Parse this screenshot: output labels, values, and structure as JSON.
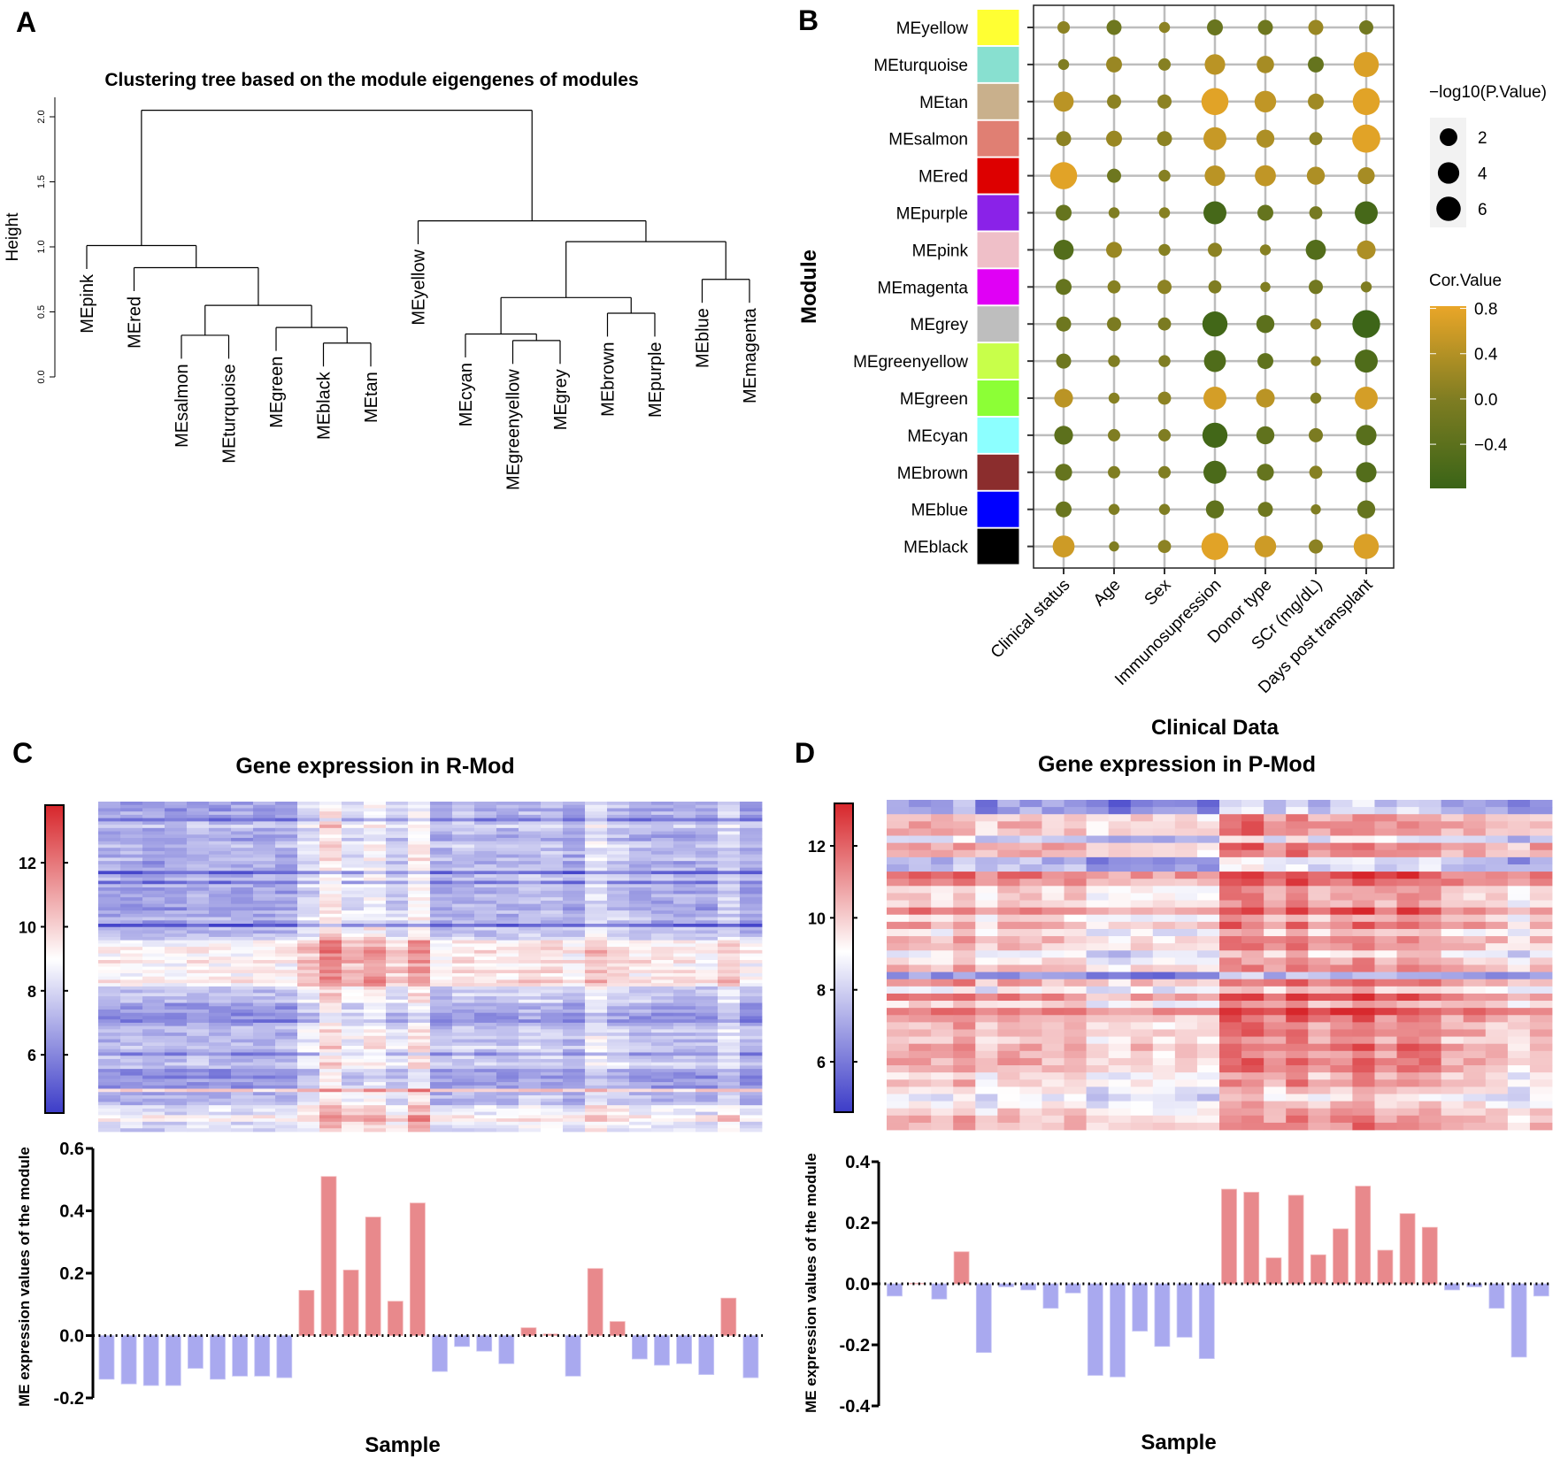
{
  "panel_labels": {
    "a": "A",
    "b": "B",
    "c": "C",
    "d": "D"
  },
  "chart_data": [
    {
      "panel": "A",
      "type": "dendrogram",
      "title": "Clustering tree based on the module eigengenes of modules",
      "ylabel": "Height",
      "yticks": [
        0.0,
        0.5,
        1.0,
        1.5,
        2.0
      ],
      "ytick_labels": [
        "0.0",
        "0.5",
        "1.0",
        "1.5",
        "2.0"
      ],
      "ylim": [
        0,
        2.1
      ],
      "leaf_hang": 0.18,
      "tree": {
        "h": 2.05,
        "c": [
          {
            "h": 1.01,
            "c": [
              "MEpink",
              {
                "h": 0.84,
                "c": [
                  "MEred",
                  {
                    "h": 0.55,
                    "c": [
                      {
                        "h": 0.32,
                        "c": [
                          "MEsalmon",
                          "MEturquoise"
                        ]
                      },
                      {
                        "h": 0.38,
                        "c": [
                          "MEgreen",
                          {
                            "h": 0.26,
                            "c": [
                              "MEblack",
                              "MEtan"
                            ]
                          }
                        ]
                      }
                    ]
                  }
                ]
              }
            ]
          },
          {
            "h": 1.2,
            "c": [
              "MEyellow",
              {
                "h": 1.04,
                "c": [
                  {
                    "h": 0.61,
                    "c": [
                      {
                        "h": 0.33,
                        "c": [
                          "MEcyan",
                          {
                            "h": 0.28,
                            "c": [
                              "MEgreenyellow",
                              "MEgrey"
                            ]
                          }
                        ]
                      },
                      {
                        "h": 0.49,
                        "c": [
                          "MEbrown",
                          "MEpurple"
                        ]
                      }
                    ]
                  },
                  {
                    "h": 0.75,
                    "c": [
                      "MEblue",
                      "MEmagenta"
                    ]
                  }
                ]
              }
            ]
          }
        ]
      }
    },
    {
      "panel": "B",
      "type": "scatter",
      "subtype": "dot-matrix",
      "ylabel": "Module",
      "xlabel": "Clinical Data",
      "rows": [
        "MEyellow",
        "MEturquoise",
        "MEtan",
        "MEsalmon",
        "MEred",
        "MEpurple",
        "MEpink",
        "MEmagenta",
        "MEgrey",
        "MEgreenyellow",
        "MEgreen",
        "MEcyan",
        "MEbrown",
        "MEblue",
        "MEblack"
      ],
      "row_colors": [
        "#ffff33",
        "#88e0d0",
        "#c9b08c",
        "#e07f73",
        "#dd0000",
        "#8a22e8",
        "#efbfc8",
        "#e000f5",
        "#bebebe",
        "#c8ff4a",
        "#8cff36",
        "#8cffff",
        "#8b2d2d",
        "#0000ff",
        "#000000"
      ],
      "columns": [
        "Clinical status",
        "Age",
        "Sex",
        "Immunosupression",
        "Donor type",
        "SCr (mg/dL)",
        "Days post transplant"
      ],
      "cor": [
        [
          0.1,
          -0.2,
          0.1,
          -0.25,
          -0.2,
          0.2,
          -0.15
        ],
        [
          0.0,
          0.2,
          0.05,
          0.45,
          0.3,
          -0.3,
          0.7
        ],
        [
          0.45,
          0.1,
          0.1,
          0.75,
          0.5,
          0.25,
          0.75
        ],
        [
          0.1,
          0.2,
          0.1,
          0.55,
          0.35,
          0.1,
          0.75
        ],
        [
          0.75,
          -0.2,
          0.05,
          0.45,
          0.5,
          0.35,
          0.3
        ],
        [
          -0.3,
          0.0,
          0.05,
          -0.65,
          -0.3,
          -0.1,
          -0.65
        ],
        [
          -0.5,
          0.2,
          0.05,
          0.1,
          0.05,
          -0.5,
          0.35
        ],
        [
          -0.3,
          0.05,
          0.1,
          0.0,
          0.0,
          -0.15,
          0.0
        ],
        [
          -0.2,
          -0.05,
          -0.05,
          -0.7,
          -0.4,
          0.1,
          -0.75
        ],
        [
          -0.2,
          0.0,
          0.0,
          -0.55,
          -0.35,
          0.05,
          -0.55
        ],
        [
          0.45,
          0.05,
          0.1,
          0.65,
          0.45,
          0.0,
          0.65
        ],
        [
          -0.4,
          0.0,
          0.0,
          -0.7,
          -0.35,
          -0.05,
          -0.45
        ],
        [
          -0.3,
          0.0,
          0.0,
          -0.6,
          -0.3,
          0.05,
          -0.5
        ],
        [
          -0.25,
          0.0,
          0.0,
          -0.35,
          -0.2,
          0.0,
          -0.3
        ],
        [
          0.6,
          0.0,
          0.1,
          0.75,
          0.6,
          0.1,
          0.7
        ]
      ],
      "neglog10p": [
        [
          0.5,
          1.0,
          0.3,
          1.2,
          1.0,
          1.0,
          0.8
        ],
        [
          0.3,
          1.2,
          0.5,
          2.6,
          1.6,
          1.2,
          4.6
        ],
        [
          2.5,
          0.8,
          0.8,
          5.6,
          3.0,
          1.2,
          5.6
        ],
        [
          1.0,
          1.2,
          1.0,
          3.6,
          1.8,
          0.6,
          6.2
        ],
        [
          5.6,
          0.8,
          0.4,
          2.6,
          2.8,
          1.8,
          1.5
        ],
        [
          1.2,
          0.3,
          0.3,
          3.6,
          1.2,
          0.6,
          3.6
        ],
        [
          2.5,
          1.2,
          0.4,
          0.8,
          0.3,
          2.5,
          2.0
        ],
        [
          1.2,
          0.6,
          0.8,
          0.6,
          0.2,
          0.8,
          0.3
        ],
        [
          1.0,
          0.8,
          0.6,
          4.6,
          1.8,
          0.3,
          6.0
        ],
        [
          1.0,
          0.4,
          0.4,
          3.2,
          1.2,
          0.2,
          3.6
        ],
        [
          2.0,
          0.3,
          0.6,
          3.6,
          2.0,
          0.3,
          3.6
        ],
        [
          2.0,
          0.5,
          0.5,
          4.6,
          1.8,
          0.8,
          2.6
        ],
        [
          1.5,
          0.5,
          0.5,
          3.6,
          1.5,
          0.6,
          2.6
        ],
        [
          1.2,
          0.3,
          0.3,
          1.8,
          1.0,
          0.2,
          1.8
        ],
        [
          3.2,
          0.2,
          0.6,
          5.6,
          3.0,
          0.8,
          4.6
        ]
      ],
      "size_legend": {
        "title": "−log10(P.Value)",
        "values": [
          2,
          4,
          6
        ],
        "labels": [
          "2",
          "4",
          "6"
        ]
      },
      "color_legend": {
        "title": "Cor.Value",
        "ticks": [
          0.8,
          0.4,
          0.0,
          -0.4
        ],
        "tick_labels": [
          "0.8",
          "0.4",
          "0.0",
          "−0.4"
        ],
        "range": [
          -0.79,
          0.82
        ],
        "colors": {
          "low": "#3a6417",
          "mid": "#7f7d22",
          "high": "#eaa628"
        }
      }
    },
    {
      "panel": "C",
      "type": "heatmap",
      "title": "Gene expression in R-Mod",
      "n_samples": 30,
      "sample_effect_per_ME": 4,
      "colorbar": {
        "ticks": [
          12,
          10,
          8,
          6
        ],
        "tick_labels": [
          "12",
          "10",
          "8",
          "6"
        ],
        "range": [
          4.18,
          13.8
        ],
        "mid": 9,
        "colors": {
          "low": "#3c3cc8",
          "mid": "#ffffff",
          "high": "#d7262b"
        }
      },
      "row_baseline": [
        7.2,
        7.4,
        7.0,
        7.6,
        7.3,
        5.9,
        7.9,
        8.4,
        7.5,
        7.6,
        7.2,
        7.0,
        7.8,
        8.0,
        7.4,
        7.7,
        7.3,
        7.9,
        7.1,
        7.4,
        7.6,
        5.6,
        7.5,
        7.8,
        6.0,
        7.6,
        7.3,
        7.0,
        7.4,
        7.5,
        7.2,
        7.3,
        7.0,
        7.6,
        7.3,
        7.8,
        7.1,
        5.3,
        7.9,
        7.7,
        7.8,
        8.3,
        9.6,
        9.4,
        9.8,
        10.0,
        9.5,
        9.7,
        10.1,
        9.3,
        9.6,
        9.9,
        9.4,
        9.8,
        10.1,
        9.6,
        8.2,
        7.9,
        8.1,
        7.8,
        8.0,
        7.1,
        6.9,
        7.2,
        6.5,
        6.8,
        6.3,
        7.2,
        7.8,
        8.1,
        7.6,
        8.0,
        7.7,
        7.9,
        8.2,
        7.8,
        6.5,
        8.0,
        7.9,
        8.2,
        8.1,
        6.8,
        6.9,
        6.6,
        7.0,
        6.9,
        6.8,
        10.3,
        7.5,
        7.7,
        7.4,
        7.6,
        8.8,
        9.0,
        8.6,
        9.8,
        9.9,
        8.5,
        8.7,
        8.4
      ]
    },
    {
      "panel": "C",
      "type": "bar",
      "xlabel": "Sample",
      "ylabel": "ME expression values of the module",
      "ylim": [
        -0.2,
        0.6
      ],
      "yticks": [
        0.6,
        0.4,
        0.2,
        0.0,
        -0.2
      ],
      "ytick_labels": [
        "0.6",
        "0.4",
        "0.2",
        "0.0",
        "-0.2"
      ],
      "values": [
        -0.14,
        -0.155,
        -0.16,
        -0.16,
        -0.105,
        -0.14,
        -0.13,
        -0.13,
        -0.135,
        0.145,
        0.51,
        0.21,
        0.38,
        0.11,
        0.425,
        -0.115,
        -0.035,
        -0.05,
        -0.09,
        0.025,
        0.005,
        -0.13,
        0.215,
        0.045,
        -0.075,
        -0.095,
        -0.09,
        -0.125,
        0.12,
        -0.135
      ],
      "colors": {
        "positive": "#e8898c",
        "negative": "#a9a9ef"
      }
    },
    {
      "panel": "D",
      "type": "heatmap",
      "title": "Gene expression in P-Mod",
      "n_samples": 30,
      "sample_effect_per_ME": 4,
      "colorbar": {
        "ticks": [
          12,
          10,
          8,
          6
        ],
        "tick_labels": [
          "12",
          "10",
          "8",
          "6"
        ],
        "range": [
          4.6,
          13.18
        ],
        "mid": 9,
        "colors": {
          "low": "#3c3cc8",
          "mid": "#ffffff",
          "high": "#d7262b"
        }
      },
      "row_baseline": [
        7.0,
        7.2,
        10.3,
        10.6,
        10.6,
        8.0,
        11.0,
        10.6,
        7.6,
        7.8,
        11.7,
        11.2,
        10.0,
        10.0,
        9.9,
        11.5,
        9.6,
        10.8,
        9.3,
        10.5,
        10.3,
        9.0,
        9.8,
        10.5,
        6.8,
        10.8,
        9.2,
        11.5,
        9.8,
        11.9,
        10.8,
        10.4,
        10.7,
        10.1,
        10.9,
        10.5,
        10.7,
        10.6,
        9.7,
        10.3,
        9.4,
        8.7,
        9.5,
        10.0,
        10.4,
        10.5
      ]
    },
    {
      "panel": "D",
      "type": "bar",
      "xlabel": "Sample",
      "ylabel": "ME expression values of the module",
      "ylim": [
        -0.4,
        0.4
      ],
      "yticks": [
        0.4,
        0.2,
        0.0,
        -0.2,
        -0.4
      ],
      "ytick_labels": [
        "0.4",
        "0.2",
        "0.0",
        "-0.2",
        "-0.4"
      ],
      "values": [
        -0.04,
        0.002,
        -0.05,
        0.105,
        -0.225,
        -0.01,
        -0.02,
        -0.08,
        -0.03,
        -0.3,
        -0.305,
        -0.155,
        -0.205,
        -0.175,
        -0.245,
        0.31,
        0.3,
        0.085,
        0.29,
        0.095,
        0.18,
        0.32,
        0.11,
        0.23,
        0.185,
        -0.02,
        -0.01,
        -0.08,
        -0.24,
        -0.04
      ],
      "colors": {
        "positive": "#e8898c",
        "negative": "#a9a9ef"
      }
    }
  ]
}
